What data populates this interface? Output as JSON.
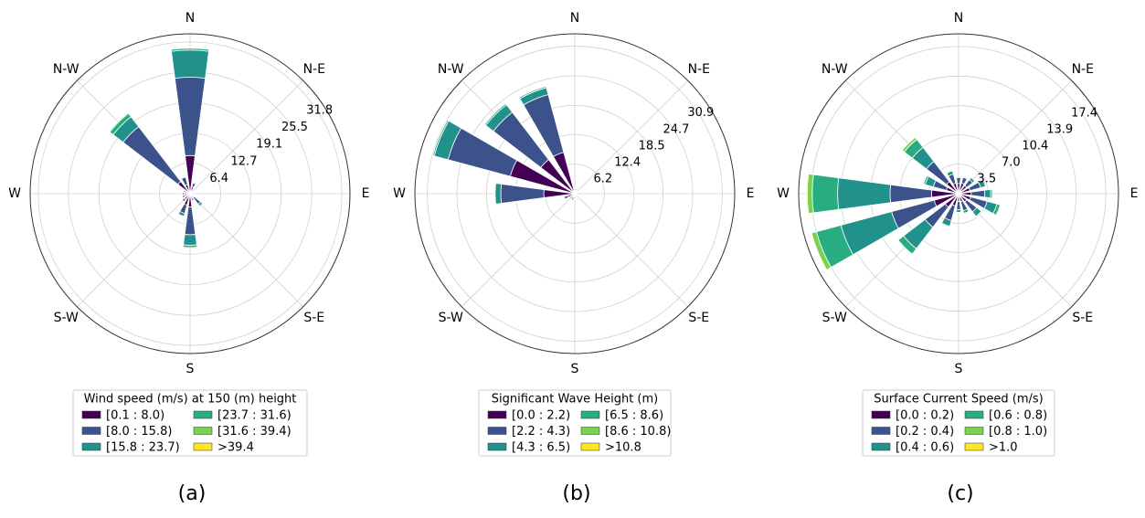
{
  "colors": {
    "bins": [
      "#440154",
      "#3b528b",
      "#21918c",
      "#27ad81",
      "#7ad151",
      "#fde725"
    ]
  },
  "chart_data": [
    {
      "type": "windrose",
      "caption": "(a)",
      "legend_title": "Wind speed (m/s) at 150 (m) height",
      "bins": [
        "[0.1 : 8.0)",
        "[8.0 : 15.8)",
        "[15.8 : 23.7)",
        "[23.7 : 31.6)",
        "[31.6 : 39.4)",
        ">39.4"
      ],
      "direction_labels": [
        "N",
        "N-E",
        "E",
        "S-E",
        "S",
        "S-W",
        "W",
        "N-W"
      ],
      "rlim": [
        0,
        33.5
      ],
      "r_ticks": [
        "6.4",
        "12.7",
        "19.1",
        "25.5",
        "31.8"
      ],
      "r_tick_values": [
        6.4,
        12.7,
        19.1,
        25.5,
        31.8
      ],
      "sectors": [
        {
          "dir": 0,
          "values": [
            8.0,
            16.4,
            5.7,
            0.4,
            0.1,
            0
          ]
        },
        {
          "dir": 22.5,
          "values": [
            1.5,
            0.8,
            0,
            0,
            0,
            0
          ]
        },
        {
          "dir": 45,
          "values": [
            0.6,
            0.3,
            0,
            0,
            0,
            0
          ]
        },
        {
          "dir": 67.5,
          "values": [
            0.4,
            0.2,
            0,
            0,
            0,
            0
          ]
        },
        {
          "dir": 90,
          "values": [
            0.4,
            0.1,
            0,
            0,
            0,
            0
          ]
        },
        {
          "dir": 112.5,
          "values": [
            0.4,
            0.2,
            0,
            0,
            0,
            0
          ]
        },
        {
          "dir": 135,
          "values": [
            1.0,
            1.8,
            0.5,
            0.2,
            0,
            0
          ]
        },
        {
          "dir": 157.5,
          "values": [
            1.0,
            0.5,
            0,
            0,
            0,
            0
          ]
        },
        {
          "dir": 180,
          "values": [
            2.8,
            5.8,
            2.2,
            0.5,
            0.2,
            0
          ]
        },
        {
          "dir": 202.5,
          "values": [
            2.5,
            1.8,
            0.6,
            0,
            0,
            0
          ]
        },
        {
          "dir": 225,
          "values": [
            1.5,
            0.6,
            0,
            0,
            0,
            0
          ]
        },
        {
          "dir": 247.5,
          "values": [
            1.2,
            0.5,
            0,
            0,
            0,
            0
          ]
        },
        {
          "dir": 270,
          "values": [
            1.2,
            0.4,
            0,
            0,
            0,
            0
          ]
        },
        {
          "dir": 292.5,
          "values": [
            1.0,
            0.4,
            0,
            0,
            0,
            0
          ]
        },
        {
          "dir": 315,
          "values": [
            3.2,
            14.5,
            2.6,
            0.9,
            0.2,
            0
          ]
        },
        {
          "dir": 337.5,
          "values": [
            2.0,
            1.6,
            0,
            0,
            0,
            0
          ]
        }
      ]
    },
    {
      "type": "windrose",
      "caption": "(b)",
      "legend_title": "Significant Wave Height (m)",
      "bins": [
        "[0.0 : 2.2)",
        "[2.2 : 4.3)",
        "[4.3 : 6.5)",
        "[6.5 : 8.6)",
        "[8.6 : 10.8)",
        ">10.8"
      ],
      "direction_labels": [
        "N",
        "N-E",
        "E",
        "S-E",
        "S",
        "S-W",
        "W",
        "N-W"
      ],
      "rlim": [
        0,
        33.5
      ],
      "r_ticks": [
        "6.2",
        "12.4",
        "18.5",
        "24.7",
        "30.9"
      ],
      "r_tick_values": [
        6.2,
        12.4,
        18.5,
        24.7,
        30.9
      ],
      "sectors": [
        {
          "dir": 0,
          "values": [
            0.5,
            0.2,
            0,
            0,
            0,
            0
          ]
        },
        {
          "dir": 22.5,
          "values": [
            0.8,
            0.3,
            0,
            0,
            0,
            0
          ]
        },
        {
          "dir": 45,
          "values": [
            0.5,
            0.2,
            0,
            0,
            0,
            0
          ]
        },
        {
          "dir": 90,
          "values": [
            0.3,
            0.2,
            0,
            0,
            0,
            0
          ]
        },
        {
          "dir": 135,
          "values": [
            0.3,
            0.2,
            0,
            0,
            0,
            0
          ]
        },
        {
          "dir": 180,
          "values": [
            0.5,
            0.5,
            0,
            0,
            0,
            0
          ]
        },
        {
          "dir": 202.5,
          "values": [
            0.8,
            0.6,
            0,
            0,
            0,
            0
          ]
        },
        {
          "dir": 225,
          "values": [
            0.8,
            0.5,
            0,
            0,
            0,
            0
          ]
        },
        {
          "dir": 247.5,
          "values": [
            1.5,
            0.8,
            0,
            0,
            0,
            0
          ]
        },
        {
          "dir": 270,
          "values": [
            6.5,
            9.0,
            1.2,
            0.1,
            0,
            0
          ]
        },
        {
          "dir": 292.5,
          "values": [
            14.0,
            13.5,
            3.0,
            0.3,
            0,
            0
          ]
        },
        {
          "dir": 315,
          "values": [
            9.0,
            12.5,
            2.0,
            0.3,
            0,
            0
          ]
        },
        {
          "dir": 337.5,
          "values": [
            9.0,
            12.5,
            1.5,
            0.3,
            0,
            0
          ]
        }
      ]
    },
    {
      "type": "windrose",
      "caption": "(c)",
      "legend_title": "Surface Current Speed (m/s)",
      "bins": [
        "[0.0 : 0.2)",
        "[0.2 : 0.4)",
        "[0.4 : 0.6)",
        "[0.6 : 0.8)",
        "[0.8 : 1.0)",
        ">1.0"
      ],
      "direction_labels": [
        "N",
        "N-E",
        "E",
        "S-E",
        "S",
        "S-W",
        "W",
        "N-W"
      ],
      "rlim": [
        0,
        18.9
      ],
      "r_ticks": [
        "3.5",
        "7.0",
        "10.4",
        "13.9",
        "17.4"
      ],
      "r_tick_values": [
        3.5,
        6.95,
        10.4,
        13.9,
        17.4
      ],
      "sectors": [
        {
          "dir": 0,
          "values": [
            1.2,
            0.7,
            0,
            0,
            0,
            0
          ]
        },
        {
          "dir": 22.5,
          "values": [
            1.3,
            0.7,
            0.1,
            0,
            0,
            0
          ]
        },
        {
          "dir": 45,
          "values": [
            1.2,
            0.9,
            0.3,
            0,
            0,
            0
          ]
        },
        {
          "dir": 67.5,
          "values": [
            1.4,
            1.3,
            0.6,
            0.1,
            0,
            0
          ]
        },
        {
          "dir": 90,
          "values": [
            1.5,
            1.6,
            0.7,
            0.2,
            0,
            0
          ]
        },
        {
          "dir": 112.5,
          "values": [
            1.5,
            2.0,
            1.2,
            0.4,
            0.1,
            0
          ]
        },
        {
          "dir": 135,
          "values": [
            1.2,
            1.5,
            0.7,
            0.1,
            0,
            0
          ]
        },
        {
          "dir": 157.5,
          "values": [
            1.0,
            1.1,
            0.3,
            0,
            0,
            0
          ]
        },
        {
          "dir": 180,
          "values": [
            0.9,
            1.0,
            0.3,
            0,
            0,
            0
          ]
        },
        {
          "dir": 202.5,
          "values": [
            1.5,
            1.8,
            0.7,
            0.1,
            0,
            0
          ]
        },
        {
          "dir": 225,
          "values": [
            2.0,
            3.0,
            3.2,
            0.8,
            0.1,
            0
          ]
        },
        {
          "dir": 247.5,
          "values": [
            3.0,
            5.2,
            6.2,
            3.0,
            0.6,
            0.1
          ]
        },
        {
          "dir": 270,
          "values": [
            3.2,
            4.9,
            6.2,
            3.0,
            0.6,
            0.1
          ]
        },
        {
          "dir": 292.5,
          "values": [
            1.5,
            1.6,
            1.0,
            0.2,
            0,
            0
          ]
        },
        {
          "dir": 315,
          "values": [
            1.8,
            3.0,
            2.1,
            1.2,
            0.3,
            0
          ]
        },
        {
          "dir": 337.5,
          "values": [
            1.3,
            1.1,
            0.4,
            0.1,
            0,
            0
          ]
        }
      ]
    }
  ]
}
